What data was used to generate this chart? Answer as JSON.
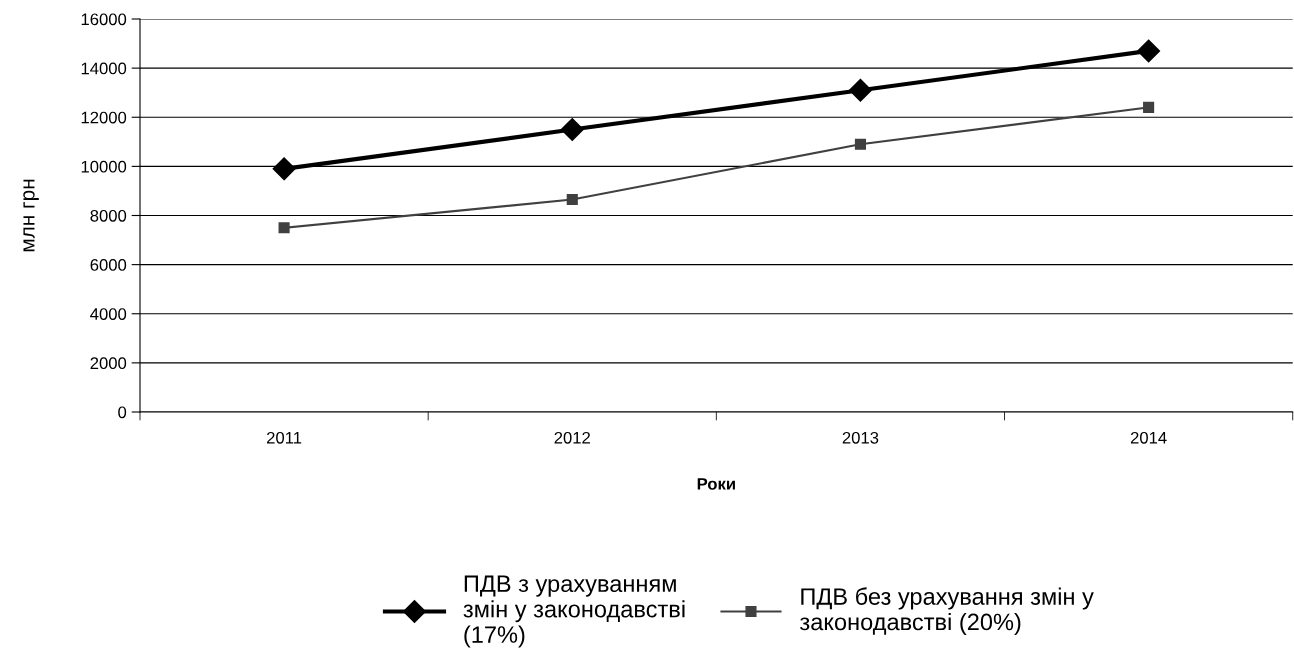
{
  "chart_data": {
    "type": "line",
    "xlabel": "Роки",
    "ylabel": "млн грн",
    "categories": [
      "2011",
      "2012",
      "2013",
      "2014"
    ],
    "series": [
      {
        "name": "ПДВ з урахуванням\nзмін у законодавстві\n(17%)",
        "color": "#000000",
        "marker": "diamond",
        "values": [
          9900,
          11500,
          13100,
          14700
        ]
      },
      {
        "name": "ПДВ без урахування змін у\nзаконодавстві (20%)",
        "color": "#404040",
        "marker": "square",
        "values": [
          7500,
          8650,
          10900,
          12400
        ]
      }
    ],
    "ylim": [
      0,
      16000
    ],
    "yticks": [
      0,
      2000,
      4000,
      6000,
      8000,
      10000,
      12000,
      14000,
      16000
    ],
    "grid": "y",
    "legend": "bottom",
    "line_style": "solid"
  }
}
